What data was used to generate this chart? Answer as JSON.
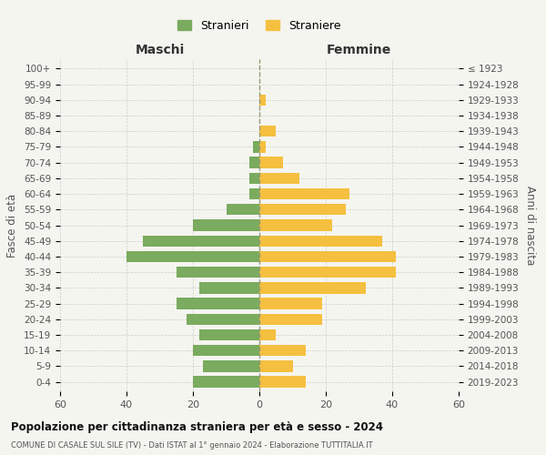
{
  "age_groups": [
    "0-4",
    "5-9",
    "10-14",
    "15-19",
    "20-24",
    "25-29",
    "30-34",
    "35-39",
    "40-44",
    "45-49",
    "50-54",
    "55-59",
    "60-64",
    "65-69",
    "70-74",
    "75-79",
    "80-84",
    "85-89",
    "90-94",
    "95-99",
    "100+"
  ],
  "birth_years": [
    "2019-2023",
    "2014-2018",
    "2009-2013",
    "2004-2008",
    "1999-2003",
    "1994-1998",
    "1989-1993",
    "1984-1988",
    "1979-1983",
    "1974-1978",
    "1969-1973",
    "1964-1968",
    "1959-1963",
    "1954-1958",
    "1949-1953",
    "1944-1948",
    "1939-1943",
    "1934-1938",
    "1929-1933",
    "1924-1928",
    "≤ 1923"
  ],
  "males": [
    20,
    17,
    20,
    18,
    22,
    25,
    18,
    25,
    40,
    35,
    20,
    10,
    3,
    3,
    3,
    2,
    0,
    0,
    0,
    0,
    0
  ],
  "females": [
    14,
    10,
    14,
    5,
    19,
    19,
    32,
    41,
    41,
    37,
    22,
    26,
    27,
    12,
    7,
    2,
    5,
    0,
    2,
    0,
    0
  ],
  "male_color": "#7aab5e",
  "female_color": "#f5c040",
  "background_color": "#f5f5f0",
  "title": "Popolazione per cittadinanza straniera per età e sesso - 2024",
  "subtitle": "COMUNE DI CASALE SUL SILE (TV) - Dati ISTAT al 1° gennaio 2024 - Elaborazione TUTTITALIA.IT",
  "ylabel_left": "Fasce di età",
  "ylabel_right": "Anni di nascita",
  "xlabel_left": "Maschi",
  "xlabel_right": "Femmine",
  "legend_male": "Stranieri",
  "legend_female": "Straniere",
  "xlim": 60,
  "grid_color": "#cccccc"
}
